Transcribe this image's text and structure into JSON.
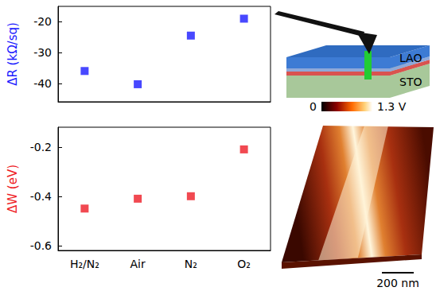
{
  "chart_data": [
    {
      "type": "scatter",
      "ylabel": "ΔR (kΩ/sq)",
      "categories": [
        "H₂/N₂",
        "Air",
        "N₂",
        "O₂"
      ],
      "values": [
        -36,
        -40.3,
        -24.5,
        -19
      ],
      "color": "#1a1aff",
      "marker": "square",
      "ylim": [
        -46,
        -15
      ],
      "yticks": [
        -40,
        -30,
        -20
      ],
      "grid": false,
      "tick_labels": "y"
    },
    {
      "type": "scatter",
      "ylabel": "ΔW (eV)",
      "categories": [
        "H₂/N₂",
        "Air",
        "N₂",
        "O₂"
      ],
      "values": [
        -0.45,
        -0.41,
        -0.4,
        -0.21
      ],
      "color": "#ee1c25",
      "marker": "square",
      "ylim": [
        -0.62,
        -0.12
      ],
      "yticks": [
        -0.6,
        -0.4,
        -0.2
      ],
      "grid": false
    }
  ],
  "schematic": {
    "layers": [
      "LAO",
      "STO"
    ]
  },
  "afm_image": {
    "colorbar_range": [
      0,
      1.3
    ],
    "colorbar_ticks": [
      0,
      {
        "value": 1.3,
        "label": "1.3 V"
      }
    ],
    "scale_bar": "200 nm"
  }
}
